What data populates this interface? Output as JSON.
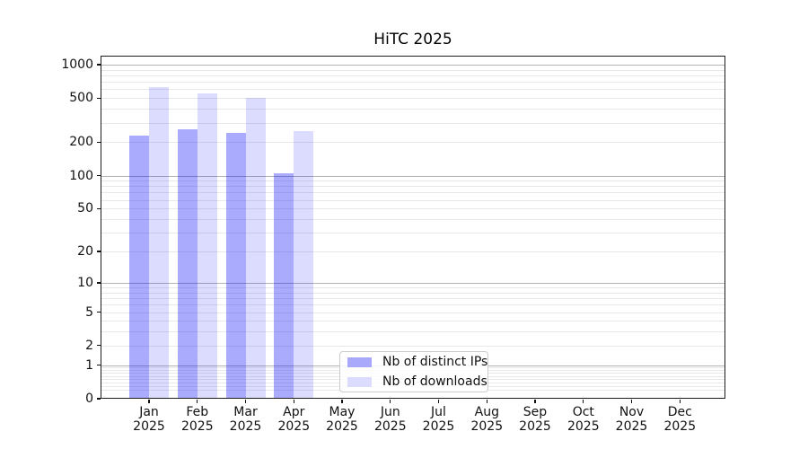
{
  "chart_data": {
    "type": "bar",
    "title": "HiTC 2025",
    "x_year": "2025",
    "months": [
      "Jan",
      "Feb",
      "Mar",
      "Apr",
      "May",
      "Jun",
      "Jul",
      "Aug",
      "Sep",
      "Oct",
      "Nov",
      "Dec"
    ],
    "y_ticks": [
      0,
      1,
      2,
      5,
      10,
      20,
      50,
      100,
      200,
      500,
      1000
    ],
    "y_scale": "log1p",
    "ylim": [
      0,
      1200
    ],
    "grid": "horizontal major (powers of 10) + minor",
    "legend_position": "inside lower-center",
    "series": [
      {
        "name": "Nb of distinct IPs",
        "swatch_color": "#a9a9fc",
        "fill_rgba": "rgba(13,13,252,0.35)",
        "values": [
          231,
          261,
          242,
          105,
          null,
          null,
          null,
          null,
          null,
          null,
          null,
          null
        ]
      },
      {
        "name": "Nb of downloads",
        "swatch_color": "#dcdcfe",
        "fill_rgba": "rgba(13,13,252,0.145)",
        "values": [
          626,
          549,
          505,
          253,
          null,
          null,
          null,
          null,
          null,
          null,
          null,
          null
        ]
      }
    ]
  }
}
